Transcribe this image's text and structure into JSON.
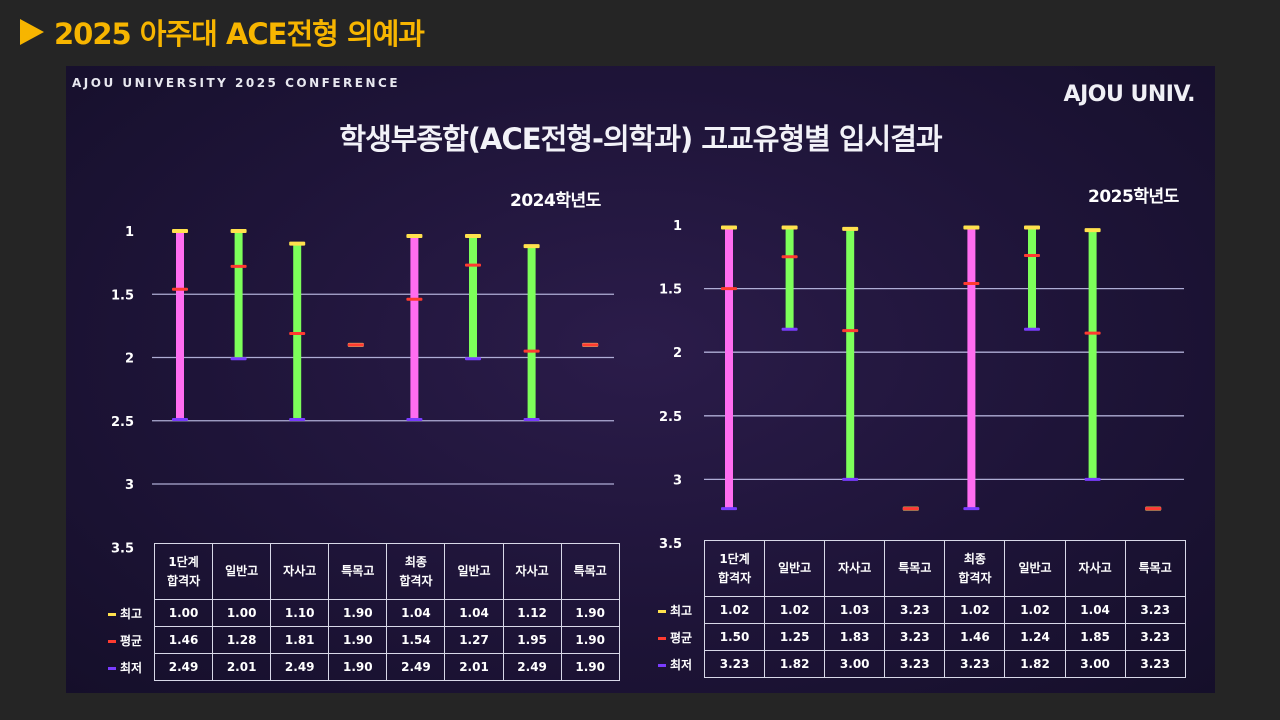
{
  "header": {
    "title": "2025 아주대 ACE전형 의예과"
  },
  "slide": {
    "conference": "AJOU UNIVERSITY 2025 CONFERENCE",
    "brand": "AJOU UNIV.",
    "title": "학생부종합(ACE전형-의학과) 고교유형별 입시결과"
  },
  "colors": {
    "best": "#ffe14d",
    "avg": "#ff3b30",
    "worst": "#7a3cff",
    "bar_pink": "#ff6df0",
    "bar_green": "#7dff5a",
    "grid": "#c8c8f0"
  },
  "chart_data": [
    {
      "type": "range-bar",
      "title": "2024학년도",
      "categories": [
        "1단계\n합격자",
        "일반고",
        "자사고",
        "특목고",
        "최종\n합격자",
        "일반고",
        "자사고",
        "특목고"
      ],
      "bar_colors": [
        "pink",
        "green",
        "green",
        "none",
        "pink",
        "green",
        "green",
        "none"
      ],
      "series": [
        {
          "name": "최고",
          "values": [
            1.0,
            1.0,
            1.1,
            1.9,
            1.04,
            1.04,
            1.12,
            1.9
          ]
        },
        {
          "name": "평균",
          "values": [
            1.46,
            1.28,
            1.81,
            1.9,
            1.54,
            1.27,
            1.95,
            1.9
          ]
        },
        {
          "name": "최저",
          "values": [
            2.49,
            2.01,
            2.49,
            1.9,
            2.49,
            2.01,
            2.49,
            1.9
          ]
        }
      ],
      "y_ticks": [
        "1",
        "1.5",
        "2",
        "2.5",
        "3",
        "3.5"
      ],
      "ylim": [
        1,
        3.5
      ],
      "y_inverted": true,
      "grid": true
    },
    {
      "type": "range-bar",
      "title": "2025학년도",
      "categories": [
        "1단계\n합격자",
        "일반고",
        "자사고",
        "특목고",
        "최종\n합격자",
        "일반고",
        "자사고",
        "특목고"
      ],
      "bar_colors": [
        "pink",
        "green",
        "green",
        "none",
        "pink",
        "green",
        "green",
        "none"
      ],
      "series": [
        {
          "name": "최고",
          "values": [
            1.02,
            1.02,
            1.03,
            3.23,
            1.02,
            1.02,
            1.04,
            3.23
          ]
        },
        {
          "name": "평균",
          "values": [
            1.5,
            1.25,
            1.83,
            3.23,
            1.46,
            1.24,
            1.85,
            3.23
          ]
        },
        {
          "name": "최저",
          "values": [
            3.23,
            1.82,
            3.0,
            3.23,
            3.23,
            1.82,
            3.0,
            3.23
          ]
        }
      ],
      "y_ticks": [
        "1",
        "1.5",
        "2",
        "2.5",
        "3",
        "3.5"
      ],
      "ylim": [
        1,
        3.5
      ],
      "y_inverted": true,
      "grid": true
    }
  ]
}
